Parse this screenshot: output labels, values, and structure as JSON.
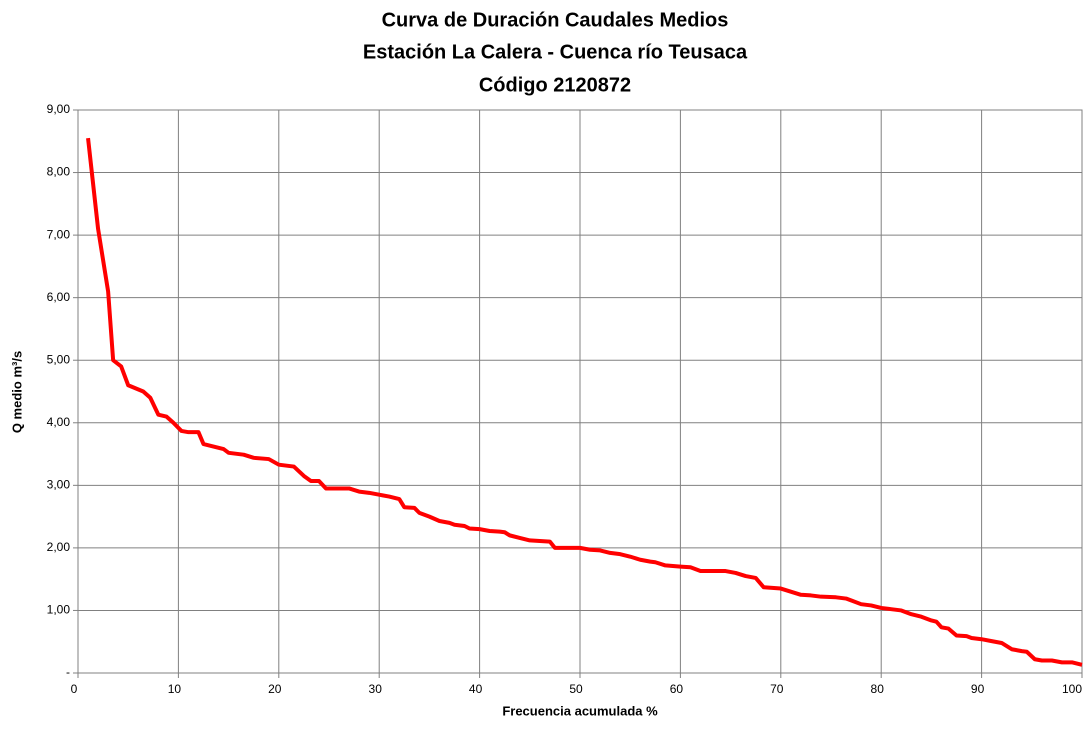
{
  "chart_data": {
    "type": "line",
    "title": [
      "Curva de Duración Caudales Medios",
      "Estación La Calera - Cuenca río Teusaca",
      "Código 2120872"
    ],
    "x_label": "Frecuencia acumulada %",
    "y_label": "Q medio m³/s",
    "x": [
      1,
      2,
      3,
      3.5,
      4.3,
      5,
      6.5,
      7.2,
      8,
      8.8,
      9.5,
      10.3,
      11,
      12,
      12.5,
      13.5,
      14.5,
      15,
      16.5,
      17.5,
      19,
      20,
      21.5,
      22.5,
      23.2,
      24,
      24.7,
      26,
      27,
      28,
      29,
      30,
      31,
      32,
      32.5,
      33.5,
      34,
      35,
      36,
      37,
      37.5,
      38.5,
      39,
      40,
      41,
      42,
      42.5,
      43,
      44,
      45,
      46,
      47,
      47.5,
      50,
      51,
      52,
      53,
      54,
      55,
      56,
      57,
      57.5,
      58.5,
      60,
      61,
      62,
      64.5,
      65.5,
      66.5,
      67.5,
      68.3,
      70,
      71,
      72,
      73,
      74,
      75.5,
      76.5,
      77,
      78,
      79,
      80,
      81,
      82,
      83,
      84,
      85,
      85.5,
      86,
      86.7,
      87.5,
      88.5,
      89,
      90,
      91,
      92,
      93,
      94,
      94.5,
      95.3,
      96,
      97,
      98,
      99,
      100
    ],
    "series": [
      {
        "name": "Q medio",
        "color": "#ff0000",
        "values": [
          8.55,
          7.1,
          6.1,
          5.0,
          4.9,
          4.6,
          4.5,
          4.4,
          4.13,
          4.1,
          4.0,
          3.87,
          3.85,
          3.85,
          3.66,
          3.62,
          3.58,
          3.52,
          3.49,
          3.44,
          3.42,
          3.33,
          3.3,
          3.15,
          3.07,
          3.07,
          2.95,
          2.95,
          2.95,
          2.9,
          2.88,
          2.85,
          2.82,
          2.78,
          2.65,
          2.64,
          2.56,
          2.5,
          2.43,
          2.4,
          2.37,
          2.35,
          2.31,
          2.3,
          2.27,
          2.26,
          2.25,
          2.2,
          2.16,
          2.12,
          2.11,
          2.1,
          2.0,
          2.0,
          1.97,
          1.96,
          1.92,
          1.9,
          1.86,
          1.81,
          1.78,
          1.77,
          1.72,
          1.7,
          1.69,
          1.63,
          1.63,
          1.6,
          1.55,
          1.52,
          1.37,
          1.35,
          1.3,
          1.25,
          1.24,
          1.22,
          1.21,
          1.19,
          1.16,
          1.1,
          1.08,
          1.04,
          1.02,
          1.0,
          0.94,
          0.9,
          0.84,
          0.82,
          0.73,
          0.71,
          0.6,
          0.59,
          0.56,
          0.54,
          0.51,
          0.48,
          0.38,
          0.35,
          0.34,
          0.22,
          0.2,
          0.2,
          0.17,
          0.17,
          0.13
        ]
      }
    ],
    "xlim": [
      0,
      100
    ],
    "xticks": [
      0,
      10,
      20,
      30,
      40,
      50,
      60,
      70,
      80,
      90,
      100
    ],
    "ylim": [
      0,
      9
    ],
    "yticks": [
      {
        "value": 0,
        "label": "-"
      },
      {
        "value": 1,
        "label": "1,00"
      },
      {
        "value": 2,
        "label": "2,00"
      },
      {
        "value": 3,
        "label": "3,00"
      },
      {
        "value": 4,
        "label": "4,00"
      },
      {
        "value": 5,
        "label": "5,00"
      },
      {
        "value": 6,
        "label": "6,00"
      },
      {
        "value": 7,
        "label": "7,00"
      },
      {
        "value": 8,
        "label": "8,00"
      },
      {
        "value": 9,
        "label": "9,00"
      }
    ],
    "grid": true
  }
}
